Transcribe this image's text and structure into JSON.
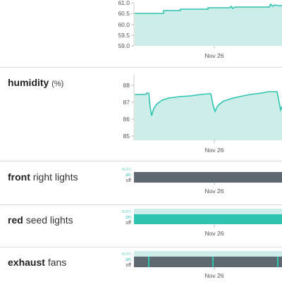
{
  "colors": {
    "accent": "#2ec4b0",
    "fill": "#cdeee8",
    "off_bar": "#5f6770",
    "off_faint": "#cdeee8"
  },
  "temperature": {
    "y_ticks": [
      "61.0",
      "60.5",
      "60.0",
      "59.5",
      "59.0"
    ],
    "x_label": "Nov 26"
  },
  "humidity": {
    "title_bold": "humidity",
    "unit": "(%)",
    "y_ticks": [
      "88",
      "87",
      "86",
      "85"
    ],
    "x_label": "Nov 26"
  },
  "front_lights": {
    "title_bold": "front",
    "title_rest": "right lights",
    "states": [
      "auto",
      "on",
      "off"
    ],
    "x_label": "Nov 26",
    "current_state": "off"
  },
  "red_lights": {
    "title_bold": "red",
    "title_rest": "seed lights",
    "states": [
      "auto",
      "on",
      "off"
    ],
    "x_label": "Nov 26",
    "current_state": "on"
  },
  "exhaust_fans": {
    "title_bold": "exhaust",
    "title_rest": "fans",
    "states": [
      "auto",
      "on",
      "off"
    ],
    "x_label": "Nov 26",
    "current_state": "off"
  }
}
